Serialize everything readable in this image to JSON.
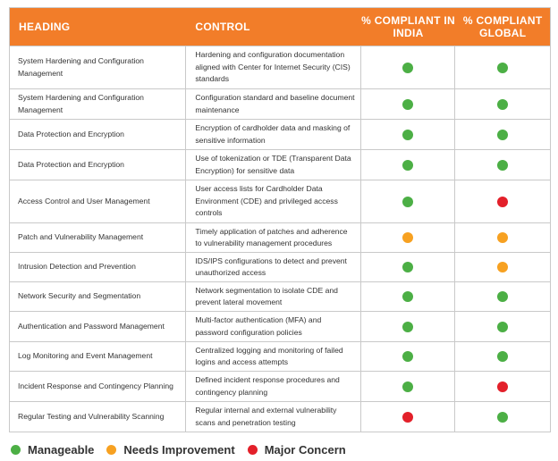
{
  "header": {
    "heading": "HEADING",
    "control": "CONTROL",
    "india": "% COMPLIANT IN INDIA",
    "global": "% COMPLIANT GLOBAL"
  },
  "status_colors": {
    "green": "#4caf45",
    "orange": "#f7a121",
    "red": "#e3202a",
    "header_bg": "#f27d29"
  },
  "rows": [
    {
      "heading": "System Hardening and Configuration Management",
      "control": "Hardening and configuration documentation aligned with Center for Internet Security (CIS) standards",
      "india": "green",
      "global": "green"
    },
    {
      "heading": "System Hardening and Configuration Management",
      "control": "Configuration standard and baseline document maintenance",
      "india": "green",
      "global": "green"
    },
    {
      "heading": "Data Protection and Encryption",
      "control": "Encryption of cardholder data and masking of sensitive information",
      "india": "green",
      "global": "green"
    },
    {
      "heading": "Data Protection and Encryption",
      "control": "Use of tokenization or TDE (Transparent Data Encryption) for sensitive data",
      "india": "green",
      "global": "green"
    },
    {
      "heading": "Access Control and User Management",
      "control": "User access lists for Cardholder Data Environment (CDE) and privileged access controls",
      "india": "green",
      "global": "red"
    },
    {
      "heading": "Patch and Vulnerability Management",
      "control": "Timely application of patches and adherence to vulnerability management procedures",
      "india": "orange",
      "global": "orange"
    },
    {
      "heading": "Intrusion Detection and Prevention",
      "control": "IDS/IPS configurations to detect and prevent unauthorized access",
      "india": "green",
      "global": "orange"
    },
    {
      "heading": "Network Security and Segmentation",
      "control": "Network segmentation to isolate CDE and prevent lateral movement",
      "india": "green",
      "global": "green"
    },
    {
      "heading": "Authentication and Password Management",
      "control": "Multi-factor authentication (MFA) and password configuration policies",
      "india": "green",
      "global": "green"
    },
    {
      "heading": "Log Monitoring and Event Management",
      "control": "Centralized logging and monitoring of failed logins and access attempts",
      "india": "green",
      "global": "green"
    },
    {
      "heading": "Incident Response and Contingency Planning",
      "control": "Defined incident response procedures and contingency planning",
      "india": "green",
      "global": "red"
    },
    {
      "heading": "Regular Testing and Vulnerability Scanning",
      "control": "Regular internal and external vulnerability scans and penetration testing",
      "india": "red",
      "global": "green"
    }
  ],
  "legend": [
    {
      "label": "Manageable",
      "color": "green"
    },
    {
      "label": "Needs Improvement",
      "color": "orange"
    },
    {
      "label": "Major Concern",
      "color": "red"
    }
  ]
}
